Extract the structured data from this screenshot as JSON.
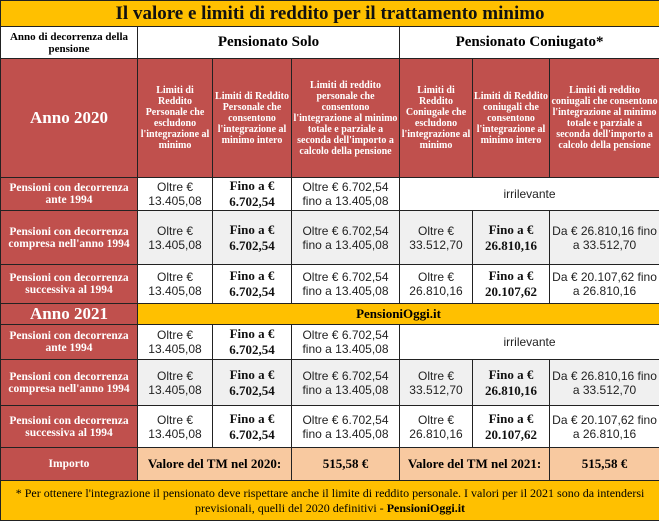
{
  "title": "Il valore e limiti di reddito per il trattamento minimo",
  "header": {
    "year_col": "Anno di decorrenza della pensione",
    "solo": "Pensionato Solo",
    "coniugato": "Pensionato Coniugato*"
  },
  "year2020": "Anno 2020",
  "year2021": "Anno 2021",
  "subheaders": [
    "Limiti di Reddito Personale che escludono l'integrazione al minimo",
    "Limiti di Reddito Personale che consentono l'integrazione al minimo intero",
    "Limiti di reddito personale che consentono l'integrazione al minimo totale e parziale a seconda dell'importo a calcolo della pensione",
    "Limiti di Reddito Coniugale che escludono l'integrazione al minimo",
    "Limiti di Reddito coniugali che consentono l'integrazione al minimo intero",
    "Limiti di reddito coniugali  che consentono l'integrazione al minimo totale e parziale a seconda dell'importo a calcolo della pensione"
  ],
  "brand": "PensioniOggi.it",
  "rows2020": [
    {
      "label": "Pensioni con decorrenza ante 1994",
      "c": [
        "Oltre € 13.405,08",
        "Fino a € 6.702,54",
        "Oltre € 6.702,54 fino a 13.405,08"
      ],
      "irr": "irrilevante"
    },
    {
      "label": "Pensioni con decorrenza compresa nell'anno 1994",
      "c": [
        "Oltre € 13.405,08",
        "Fino a € 6.702,54",
        "Oltre € 6.702,54 fino a 13.405,08",
        "Oltre € 33.512,70",
        "Fino a € 26.810,16",
        "Da € 26.810,16 fino a 33.512,70"
      ]
    },
    {
      "label": "Pensioni con decorrenza successiva al 1994",
      "c": [
        "Oltre € 13.405,08",
        "Fino a € 6.702,54",
        "Oltre € 6.702,54 fino a 13.405,08",
        "Oltre € 26.810,16",
        "Fino a € 20.107,62",
        "Da € 20.107,62 fino a 26.810,16"
      ]
    }
  ],
  "rows2021": [
    {
      "label": "Pensioni con decorrenza ante 1994",
      "c": [
        "Oltre € 13.405,08",
        "Fino a € 6.702,54",
        "Oltre € 6.702,54 fino a 13.405,08"
      ],
      "irr": "irrilevante"
    },
    {
      "label": "Pensioni con decorrenza compresa nell'anno 1994",
      "c": [
        "Oltre € 13.405,08",
        "Fino a € 6.702,54",
        "Oltre € 6.702,54 fino a 13.405,08",
        "Oltre € 33.512,70",
        "Fino a € 26.810,16",
        "Da € 26.810,16 fino a 33.512,70"
      ]
    },
    {
      "label": "Pensioni con decorrenza successiva al 1994",
      "c": [
        "Oltre € 13.405,08",
        "Fino a € 6.702,54",
        "Oltre € 6.702,54 fino a 13.405,08",
        "Oltre € 26.810,16",
        "Fino a € 20.107,62",
        "Da € 20.107,62 fino a 26.810,16"
      ]
    }
  ],
  "importo": {
    "label": "Importo",
    "tm2020_label": "Valore del TM nel 2020:",
    "tm2020_value": "515,58 €",
    "tm2021_label": "Valore del TM nel 2021:",
    "tm2021_value": "515,58 €"
  },
  "footer": {
    "text": "* Per ottenere l'integrazione il pensionato deve rispettare anche il limite di reddito personale. I valori per il 2021 sono da intendersi previsionali, quelli del 2020 definitivi - ",
    "brand": "PensioniOggi.it"
  }
}
